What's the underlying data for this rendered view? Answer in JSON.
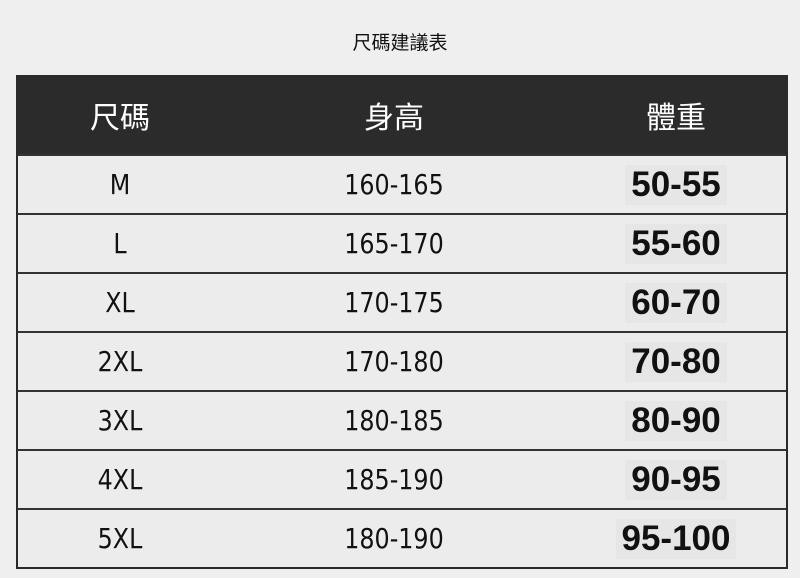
{
  "title": "尺碼建議表",
  "table": {
    "headers": [
      "尺碼",
      "身高",
      "體重"
    ],
    "rows": [
      [
        "M",
        "160-165",
        "50-55"
      ],
      [
        "L",
        "165-170",
        "55-60"
      ],
      [
        "XL",
        "170-175",
        "60-70"
      ],
      [
        "2XL",
        "170-180",
        "70-80"
      ],
      [
        "3XL",
        "180-185",
        "80-90"
      ],
      [
        "4XL",
        "185-190",
        "90-95"
      ],
      [
        "5XL",
        "180-190",
        "95-100"
      ]
    ]
  }
}
